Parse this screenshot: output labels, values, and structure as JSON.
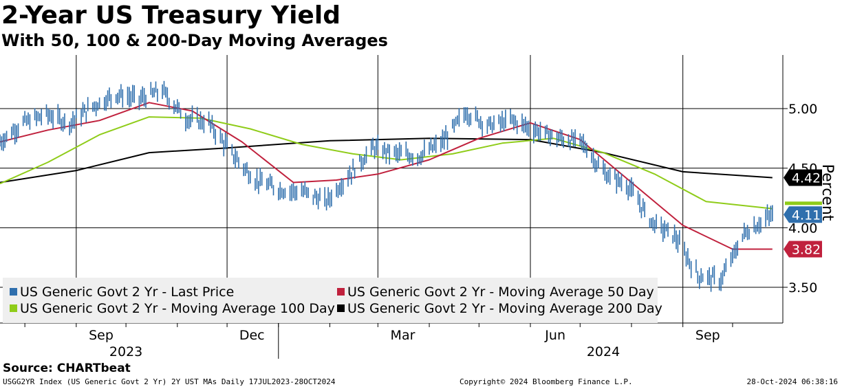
{
  "header": {
    "title": "2-Year US Treasury Yield",
    "subtitle": "With 50, 100 & 200-Day Moving Averages"
  },
  "source": "Source: CHARTbeat",
  "footer": {
    "left": "USGG2YR Index (US Generic Govt 2 Yr) 2Y UST MAs  Daily 17JUL2023-28OCT2024",
    "center": "Copyright© 2024 Bloomberg Finance L.P.",
    "right": "28-Oct-2024 06:38:16"
  },
  "chart_data": {
    "type": "line",
    "title": "2-Year US Treasury Yield",
    "subtitle": "With 50, 100 & 200-Day Moving Averages",
    "ylabel": "Percent",
    "ylim": [
      3.2,
      5.45
    ],
    "xlim": [
      "2023-07-17",
      "2024-10-28"
    ],
    "yticks": [
      3.5,
      4.0,
      4.5,
      5.0
    ],
    "ytick_labels": [
      "3.50",
      "4.00",
      "4.50",
      "5.00"
    ],
    "xticks": [
      {
        "label": "Sep",
        "date": "2023-09-01"
      },
      {
        "label": "Dec",
        "date": "2023-12-01"
      },
      {
        "label": "Mar",
        "date": "2024-03-01"
      },
      {
        "label": "Jun",
        "date": "2024-06-01"
      },
      {
        "label": "Sep",
        "date": "2024-09-01"
      }
    ],
    "year_labels": [
      {
        "label": "2023",
        "date": "2023-10-01"
      },
      {
        "label": "2024",
        "date": "2024-07-15"
      }
    ],
    "grid": true,
    "legend_position": "bottom-left",
    "series": [
      {
        "name": "US Generic Govt 2 Yr - Last Price",
        "color": "#2f6fad",
        "style": "bars",
        "x": [
          "2023-07-17",
          "2023-07-31",
          "2023-08-14",
          "2023-08-28",
          "2023-09-11",
          "2023-09-25",
          "2023-10-09",
          "2023-10-23",
          "2023-11-06",
          "2023-11-20",
          "2023-12-04",
          "2023-12-18",
          "2024-01-02",
          "2024-01-16",
          "2024-01-30",
          "2024-02-13",
          "2024-02-27",
          "2024-03-12",
          "2024-03-26",
          "2024-04-09",
          "2024-04-23",
          "2024-05-07",
          "2024-05-21",
          "2024-06-04",
          "2024-06-18",
          "2024-07-02",
          "2024-07-16",
          "2024-07-30",
          "2024-08-13",
          "2024-08-27",
          "2024-09-10",
          "2024-09-24",
          "2024-10-08",
          "2024-10-25"
        ],
        "y": [
          4.72,
          4.88,
          4.95,
          4.88,
          5.02,
          5.12,
          5.08,
          5.15,
          4.92,
          4.88,
          4.62,
          4.4,
          4.32,
          4.3,
          4.22,
          4.45,
          4.67,
          4.62,
          4.6,
          4.72,
          4.97,
          4.86,
          4.9,
          4.82,
          4.75,
          4.72,
          4.45,
          4.35,
          4.05,
          3.93,
          3.6,
          3.56,
          3.95,
          4.11
        ]
      },
      {
        "name": "US Generic Govt 2 Yr - Moving Average 50 Day",
        "color": "#c0213d",
        "style": "line",
        "x": [
          "2023-07-17",
          "2023-08-15",
          "2023-09-15",
          "2023-10-15",
          "2023-11-10",
          "2023-12-10",
          "2024-01-10",
          "2024-02-05",
          "2024-03-01",
          "2024-04-01",
          "2024-05-01",
          "2024-06-01",
          "2024-07-01",
          "2024-08-01",
          "2024-09-01",
          "2024-10-01",
          "2024-10-25"
        ],
        "y": [
          4.72,
          4.82,
          4.9,
          5.05,
          4.98,
          4.72,
          4.38,
          4.4,
          4.45,
          4.57,
          4.75,
          4.88,
          4.74,
          4.38,
          4.02,
          3.82,
          3.82
        ]
      },
      {
        "name": "US Generic Govt 2 Yr - Moving Average 100 Day",
        "color": "#8fcc19",
        "style": "line",
        "x": [
          "2023-07-17",
          "2023-08-15",
          "2023-09-15",
          "2023-10-15",
          "2023-11-15",
          "2023-12-15",
          "2024-01-15",
          "2024-02-15",
          "2024-03-15",
          "2024-04-15",
          "2024-05-15",
          "2024-06-15",
          "2024-07-15",
          "2024-08-15",
          "2024-09-15",
          "2024-10-25"
        ],
        "y": [
          4.37,
          4.55,
          4.78,
          4.93,
          4.92,
          4.83,
          4.7,
          4.62,
          4.57,
          4.62,
          4.71,
          4.75,
          4.63,
          4.45,
          4.22,
          4.16
        ]
      },
      {
        "name": "US Generic Govt 2 Yr - Moving Average 200 Day",
        "color": "#000000",
        "style": "line",
        "x": [
          "2023-07-17",
          "2023-09-01",
          "2023-10-15",
          "2023-12-01",
          "2024-02-01",
          "2024-04-01",
          "2024-06-01",
          "2024-07-15",
          "2024-09-01",
          "2024-10-25"
        ],
        "y": [
          4.38,
          4.48,
          4.63,
          4.67,
          4.73,
          4.75,
          4.74,
          4.63,
          4.47,
          4.42
        ]
      }
    ],
    "last_value_tags": [
      {
        "label": "4.42",
        "value": 4.42,
        "background": "#000000",
        "text_color": "#ffffff"
      },
      {
        "label": "4.11",
        "value": 4.11,
        "background": "#2f6fad",
        "text_color": "#ffffff"
      },
      {
        "label": "3.82",
        "value": 3.82,
        "background": "#c0213d",
        "text_color": "#ffffff"
      }
    ]
  }
}
